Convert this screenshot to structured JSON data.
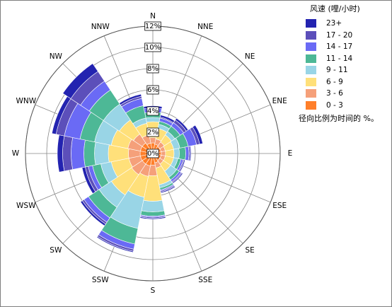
{
  "legend": {
    "title": "风速 (哩/小时)",
    "note": "径向比例为时间的 %。"
  },
  "chart_data": {
    "type": "windrose",
    "directions": [
      "N",
      "NNE",
      "NE",
      "ENE",
      "E",
      "ESE",
      "SE",
      "SSE",
      "S",
      "SSW",
      "SW",
      "WSW",
      "W",
      "WNW",
      "NW",
      "NNW"
    ],
    "radial_ticks": [
      "0%",
      "2%",
      "4%",
      "6%",
      "8%",
      "10%",
      "12%"
    ],
    "radial_max": 12,
    "bins": [
      {
        "label": "0 - 3",
        "color": "#ff7f2a"
      },
      {
        "label": "3 - 6",
        "color": "#f5a07a"
      },
      {
        "label": "6 - 9",
        "color": "#ffe07a"
      },
      {
        "label": "9 - 11",
        "color": "#99d5e6"
      },
      {
        "label": "11 - 14",
        "color": "#4db896"
      },
      {
        "label": "14 - 17",
        "color": "#6a6af5"
      },
      {
        "label": "17 - 20",
        "color": "#5c4fba"
      },
      {
        "label": "23+",
        "color": "#2323b0"
      }
    ],
    "cumulative": {
      "N": [
        1.0,
        1.5,
        3.0,
        3.4,
        3.9,
        4.3,
        4.3,
        4.5
      ],
      "NNE": [
        0.9,
        1.4,
        2.4,
        2.8,
        3.1,
        3.4,
        3.5,
        3.7
      ],
      "NE": [
        0.8,
        1.3,
        2.1,
        2.5,
        3.1,
        3.5,
        3.8,
        4.0
      ],
      "ENE": [
        0.8,
        1.2,
        2.0,
        2.6,
        3.4,
        4.2,
        4.5,
        4.8
      ],
      "E": [
        0.8,
        1.2,
        2.0,
        2.5,
        3.1,
        3.4,
        3.5,
        3.6
      ],
      "ESE": [
        0.8,
        1.2,
        2.0,
        2.4,
        2.7,
        2.9,
        3.0,
        3.1
      ],
      "SE": [
        0.8,
        1.2,
        2.0,
        2.7,
        3.0,
        3.2,
        3.3,
        3.4
      ],
      "SSE": [
        0.9,
        1.4,
        3.0,
        3.3,
        3.5,
        3.6,
        3.7,
        3.8
      ],
      "S": [
        1.1,
        2.1,
        4.5,
        5.5,
        5.9,
        6.0,
        6.1,
        6.2
      ],
      "SSW": [
        1.2,
        2.2,
        4.2,
        7.2,
        8.7,
        9.2,
        9.4,
        9.5
      ],
      "SW": [
        1.2,
        2.4,
        4.7,
        6.1,
        7.3,
        7.8,
        8.0,
        8.2
      ],
      "WSW": [
        1.2,
        2.3,
        4.0,
        5.0,
        5.8,
        6.2,
        6.5,
        6.8
      ],
      "W": [
        1.2,
        2.3,
        4.2,
        5.5,
        6.5,
        7.7,
        8.5,
        9.0
      ],
      "WNW": [
        1.2,
        2.4,
        4.0,
        5.6,
        7.0,
        8.5,
        9.3,
        9.7
      ],
      "NW": [
        1.2,
        2.2,
        3.8,
        5.6,
        7.2,
        8.2,
        9.3,
        10.2
      ],
      "NNW": [
        1.0,
        1.8,
        2.9,
        3.4,
        4.6,
        5.3,
        5.5,
        5.7
      ]
    }
  }
}
